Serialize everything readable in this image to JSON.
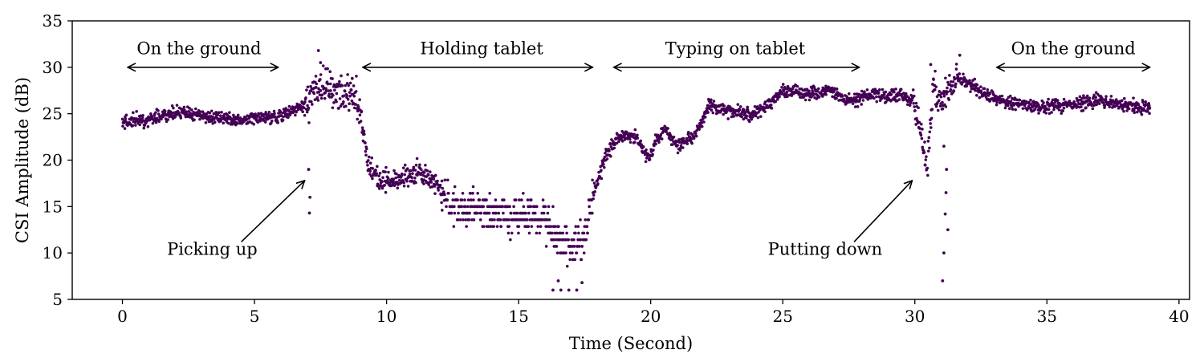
{
  "chart_data": {
    "type": "scatter",
    "xlabel": "Time (Second)",
    "ylabel": "CSI Amplitude (dB)",
    "xlim": [
      -1.9,
      40.4
    ],
    "ylim": [
      5,
      35
    ],
    "xticks": [
      0,
      5,
      10,
      15,
      20,
      25,
      30,
      35,
      40
    ],
    "yticks": [
      5,
      10,
      15,
      20,
      25,
      30,
      35
    ],
    "grid": false,
    "point_color": "#440154",
    "series": [
      {
        "trend": [
          [
            0.0,
            24.0
          ],
          [
            1.0,
            24.4
          ],
          [
            2.0,
            25.1
          ],
          [
            3.0,
            24.8
          ],
          [
            4.0,
            24.3
          ],
          [
            5.0,
            24.5
          ],
          [
            6.0,
            24.8
          ],
          [
            6.7,
            25.6
          ],
          [
            7.1,
            26.5
          ],
          [
            7.4,
            28.5
          ],
          [
            7.8,
            27.5
          ],
          [
            8.3,
            27.0
          ],
          [
            8.7,
            28.0
          ],
          [
            9.0,
            25.0
          ],
          [
            9.3,
            19.5
          ],
          [
            9.8,
            17.8
          ],
          [
            10.5,
            17.8
          ],
          [
            11.2,
            18.6
          ],
          [
            11.8,
            17.8
          ],
          [
            12.3,
            15.5
          ],
          [
            13.0,
            14.8
          ],
          [
            14.0,
            14.3
          ],
          [
            15.0,
            14.0
          ],
          [
            16.0,
            13.8
          ],
          [
            16.5,
            11.5
          ],
          [
            17.0,
            10.5
          ],
          [
            17.5,
            11.5
          ],
          [
            17.8,
            16.0
          ],
          [
            18.3,
            20.5
          ],
          [
            18.8,
            22.5
          ],
          [
            19.4,
            22.6
          ],
          [
            19.9,
            20.2
          ],
          [
            20.5,
            23.5
          ],
          [
            21.0,
            21.5
          ],
          [
            21.6,
            22.3
          ],
          [
            22.2,
            25.8
          ],
          [
            23.0,
            25.3
          ],
          [
            23.8,
            24.8
          ],
          [
            24.5,
            26.0
          ],
          [
            25.0,
            27.5
          ],
          [
            26.0,
            27.2
          ],
          [
            26.8,
            27.5
          ],
          [
            27.5,
            26.3
          ],
          [
            28.3,
            27.0
          ],
          [
            29.3,
            27.0
          ],
          [
            29.9,
            26.6
          ],
          [
            30.2,
            24.0
          ],
          [
            30.45,
            18.5
          ],
          [
            30.7,
            28.5
          ],
          [
            30.95,
            26.0
          ],
          [
            31.3,
            27.5
          ],
          [
            31.6,
            28.8
          ],
          [
            32.2,
            28.0
          ],
          [
            33.0,
            26.6
          ],
          [
            34.0,
            26.0
          ],
          [
            35.0,
            25.7
          ],
          [
            36.0,
            26.1
          ],
          [
            37.0,
            26.4
          ],
          [
            38.0,
            26.0
          ],
          [
            38.9,
            25.6
          ]
        ],
        "outliers": [
          [
            7.05,
            19.0
          ],
          [
            7.08,
            14.3
          ],
          [
            7.1,
            16.0
          ],
          [
            7.42,
            31.8
          ],
          [
            7.5,
            30.5
          ],
          [
            8.7,
            28.8
          ],
          [
            16.3,
            6.0
          ],
          [
            16.6,
            6.0
          ],
          [
            16.9,
            6.0
          ],
          [
            17.2,
            6.0
          ],
          [
            17.4,
            6.8
          ],
          [
            16.5,
            7.0
          ],
          [
            31.05,
            7.0
          ],
          [
            31.1,
            10.0
          ],
          [
            31.15,
            14.2
          ],
          [
            31.2,
            19.0
          ],
          [
            31.25,
            12.5
          ],
          [
            30.6,
            30.3
          ],
          [
            31.7,
            31.3
          ],
          [
            31.1,
            21.5
          ],
          [
            31.18,
            16.5
          ]
        ]
      }
    ],
    "annotations": [
      {
        "text": "On the ground",
        "x": 2.9,
        "y": 31.4,
        "arrow_from": 0.2,
        "arrow_to": 5.9,
        "arrow_y": 30.0
      },
      {
        "text": "Holding tablet",
        "x": 13.6,
        "y": 31.4,
        "arrow_from": 9.1,
        "arrow_to": 17.8,
        "arrow_y": 30.0
      },
      {
        "text": "Typing on tablet",
        "x": 23.2,
        "y": 31.4,
        "arrow_from": 18.6,
        "arrow_to": 27.9,
        "arrow_y": 30.0
      },
      {
        "text": "On the ground",
        "x": 36.0,
        "y": 31.4,
        "arrow_from": 33.1,
        "arrow_to": 38.9,
        "arrow_y": 30.0
      },
      {
        "text": "Picking up",
        "x": 3.4,
        "y": 9.8,
        "pointer_from": [
          4.5,
          11.2
        ],
        "pointer_to": [
          6.9,
          17.8
        ]
      },
      {
        "text": "Putting down",
        "x": 26.6,
        "y": 9.8,
        "pointer_from": [
          27.7,
          11.2
        ],
        "pointer_to": [
          29.9,
          17.8
        ]
      }
    ]
  }
}
